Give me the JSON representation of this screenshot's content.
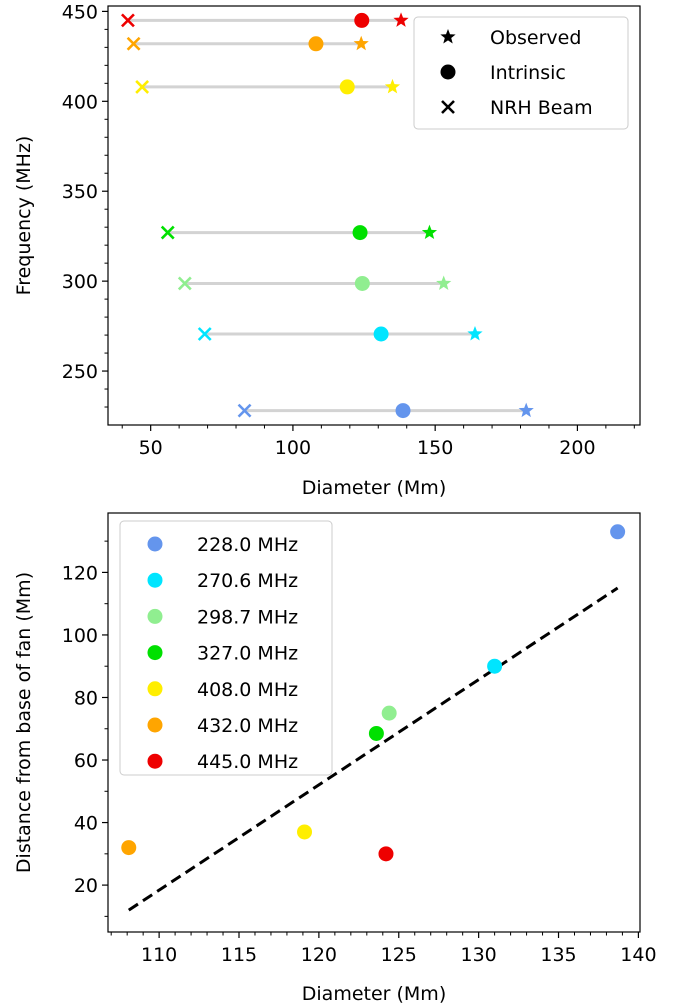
{
  "chart_data": [
    {
      "type": "scatter",
      "xlabel": "Diameter (Mm)",
      "ylabel": "Frequency (MHz)",
      "xlim": [
        35,
        222
      ],
      "ylim": [
        220,
        453
      ],
      "xticks": [
        50,
        100,
        150,
        200
      ],
      "yticks": [
        250,
        300,
        350,
        400,
        450
      ],
      "legend_position": "upper right",
      "legend": [
        {
          "label": "Observed",
          "marker": "star"
        },
        {
          "label": "Intrinsic",
          "marker": "circle"
        },
        {
          "label": "NRH Beam",
          "marker": "x"
        }
      ],
      "rows": [
        {
          "frequency": 228.0,
          "color": "#6495ed",
          "beam": 83,
          "intrinsic": 138.7,
          "observed": 182
        },
        {
          "frequency": 270.6,
          "color": "#00e5ff",
          "beam": 69,
          "intrinsic": 131.0,
          "observed": 164
        },
        {
          "frequency": 298.7,
          "color": "#90ee90",
          "beam": 62,
          "intrinsic": 124.4,
          "observed": 153
        },
        {
          "frequency": 327.0,
          "color": "#00e000",
          "beam": 56,
          "intrinsic": 123.6,
          "observed": 148
        },
        {
          "frequency": 408.0,
          "color": "#ffee00",
          "beam": 47,
          "intrinsic": 119.1,
          "observed": 135
        },
        {
          "frequency": 432.0,
          "color": "#ffa500",
          "beam": 44,
          "intrinsic": 108.1,
          "observed": 124
        },
        {
          "frequency": 445.0,
          "color": "#ee0000",
          "beam": 42,
          "intrinsic": 124.2,
          "observed": 138
        }
      ]
    },
    {
      "type": "scatter",
      "xlabel": "Diameter (Mm)",
      "ylabel": "Distance from base of fan (Mm)",
      "xlim": [
        106.8,
        140.1
      ],
      "ylim": [
        5,
        139
      ],
      "xticks": [
        110,
        115,
        120,
        125,
        130,
        135,
        140
      ],
      "yticks": [
        20,
        40,
        60,
        80,
        100,
        120
      ],
      "legend_position": "upper left",
      "series": [
        {
          "name": "228.0 MHz",
          "color": "#6495ed",
          "x": 138.7,
          "y": 133
        },
        {
          "name": "270.6 MHz",
          "color": "#00e5ff",
          "x": 131.0,
          "y": 90
        },
        {
          "name": "298.7 MHz",
          "color": "#90ee90",
          "x": 124.4,
          "y": 75
        },
        {
          "name": "327.0 MHz",
          "color": "#00e000",
          "x": 123.6,
          "y": 68.5
        },
        {
          "name": "408.0 MHz",
          "color": "#ffee00",
          "x": 119.1,
          "y": 37
        },
        {
          "name": "432.0 MHz",
          "color": "#ffa500",
          "x": 108.1,
          "y": 32
        },
        {
          "name": "445.0 MHz",
          "color": "#ee0000",
          "x": 124.2,
          "y": 30
        }
      ],
      "fit_line": {
        "x": [
          108.1,
          138.7
        ],
        "y": [
          12,
          115
        ],
        "style": "dashed",
        "color": "#000000"
      }
    }
  ]
}
